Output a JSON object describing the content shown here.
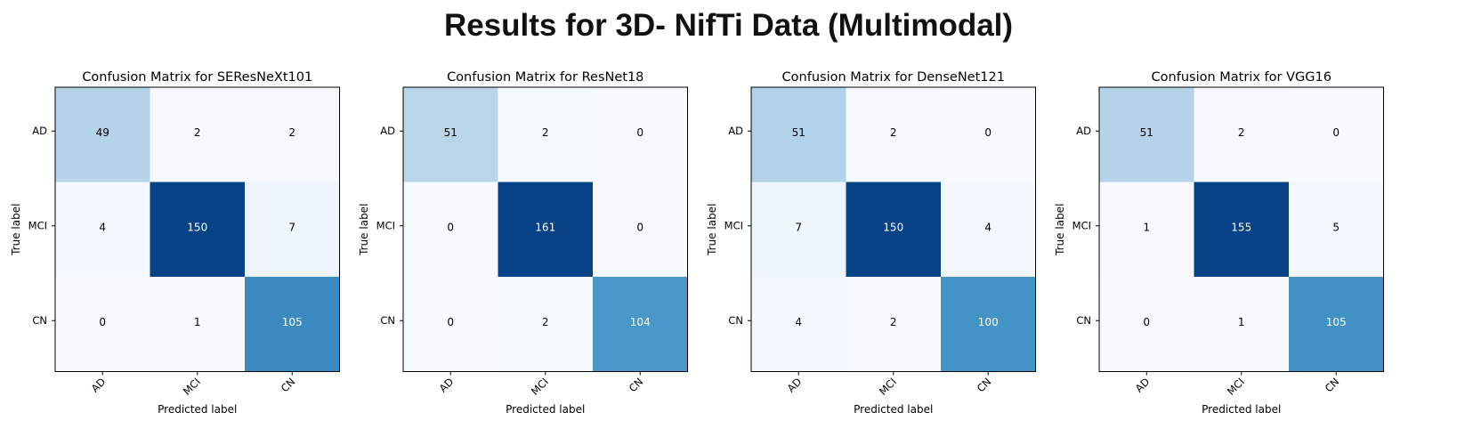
{
  "page_title": "Results for 3D- NifTi Data (Multimodal)",
  "colormap": {
    "low": "#f7fbff",
    "high": "#08306b",
    "text_light": "#ffffff",
    "text_dark": "#000000"
  },
  "chart_data": [
    {
      "type": "heatmap",
      "title": "Confusion Matrix for SEResNeXt101",
      "xlabel": "Predicted label",
      "ylabel": "True label",
      "x_categories": [
        "AD",
        "MCI",
        "CN"
      ],
      "y_categories": [
        "AD",
        "MCI",
        "CN"
      ],
      "values": [
        [
          49,
          2,
          2
        ],
        [
          4,
          150,
          7
        ],
        [
          0,
          1,
          105
        ]
      ]
    },
    {
      "type": "heatmap",
      "title": "Confusion Matrix for ResNet18",
      "xlabel": "Predicted label",
      "ylabel": "True label",
      "x_categories": [
        "AD",
        "MCI",
        "CN"
      ],
      "y_categories": [
        "AD",
        "MCI",
        "CN"
      ],
      "values": [
        [
          51,
          2,
          0
        ],
        [
          0,
          161,
          0
        ],
        [
          0,
          2,
          104
        ]
      ]
    },
    {
      "type": "heatmap",
      "title": "Confusion Matrix for DenseNet121",
      "xlabel": "Predicted label",
      "ylabel": "True label",
      "x_categories": [
        "AD",
        "MCI",
        "CN"
      ],
      "y_categories": [
        "AD",
        "MCI",
        "CN"
      ],
      "values": [
        [
          51,
          2,
          0
        ],
        [
          7,
          150,
          4
        ],
        [
          4,
          2,
          100
        ]
      ]
    },
    {
      "type": "heatmap",
      "title": "Confusion Matrix for VGG16",
      "xlabel": "Predicted label",
      "ylabel": "True label",
      "x_categories": [
        "AD",
        "MCI",
        "CN"
      ],
      "y_categories": [
        "AD",
        "MCI",
        "CN"
      ],
      "values": [
        [
          51,
          2,
          0
        ],
        [
          1,
          155,
          5
        ],
        [
          0,
          1,
          105
        ]
      ]
    }
  ]
}
